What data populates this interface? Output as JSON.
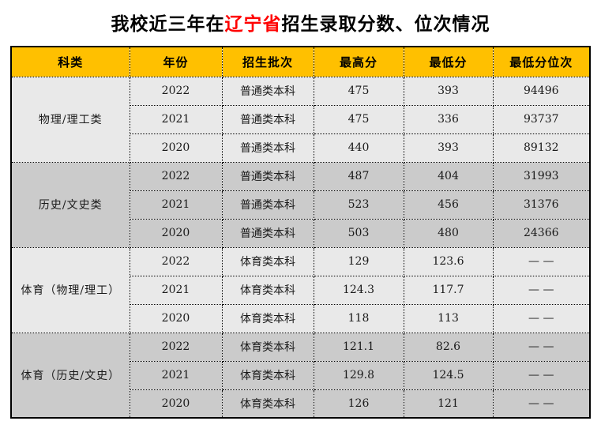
{
  "title": {
    "prefix": "我校近三年在",
    "highlight": "辽宁省",
    "suffix": "招生录取分数、位次情况"
  },
  "colors": {
    "header_bg": "#FFC000",
    "header_text": "#000000",
    "title_highlight": "#FF0000",
    "group_light": "#E9E9E9",
    "group_dark": "#CBCBCB",
    "border_color": "#000000"
  },
  "chart_data": {
    "type": "table",
    "title": "我校近三年在辽宁省招生录取分数、位次情况",
    "columns": [
      "科类",
      "年份",
      "招生批次",
      "最高分",
      "最低分",
      "最低分位次"
    ],
    "groups": [
      {
        "category": "物理/理工类",
        "shade": "light",
        "rows": [
          {
            "year": "2022",
            "batch": "普通类本科",
            "max": "475",
            "min": "393",
            "rank": "94496"
          },
          {
            "year": "2021",
            "batch": "普通类本科",
            "max": "475",
            "min": "336",
            "rank": "93737"
          },
          {
            "year": "2020",
            "batch": "普通类本科",
            "max": "440",
            "min": "393",
            "rank": "89132"
          }
        ]
      },
      {
        "category": "历史/文史类",
        "shade": "dark",
        "rows": [
          {
            "year": "2022",
            "batch": "普通类本科",
            "max": "487",
            "min": "404",
            "rank": "31993"
          },
          {
            "year": "2021",
            "batch": "普通类本科",
            "max": "523",
            "min": "456",
            "rank": "31376"
          },
          {
            "year": "2020",
            "batch": "普通类本科",
            "max": "503",
            "min": "480",
            "rank": "24366"
          }
        ]
      },
      {
        "category": "体育（物理/理工）",
        "shade": "light",
        "rows": [
          {
            "year": "2022",
            "batch": "体育类本科",
            "max": "129",
            "min": "123.6",
            "rank": "— —"
          },
          {
            "year": "2021",
            "batch": "体育类本科",
            "max": "124.3",
            "min": "117.7",
            "rank": "— —"
          },
          {
            "year": "2020",
            "batch": "体育类本科",
            "max": "118",
            "min": "113",
            "rank": "— —"
          }
        ]
      },
      {
        "category": "体育（历史/文史）",
        "shade": "dark",
        "rows": [
          {
            "year": "2022",
            "batch": "体育类本科",
            "max": "121.1",
            "min": "82.6",
            "rank": "— —"
          },
          {
            "year": "2021",
            "batch": "体育类本科",
            "max": "129.8",
            "min": "124.5",
            "rank": "— —"
          },
          {
            "year": "2020",
            "batch": "体育类本科",
            "max": "126",
            "min": "121",
            "rank": "— —"
          }
        ]
      }
    ]
  }
}
